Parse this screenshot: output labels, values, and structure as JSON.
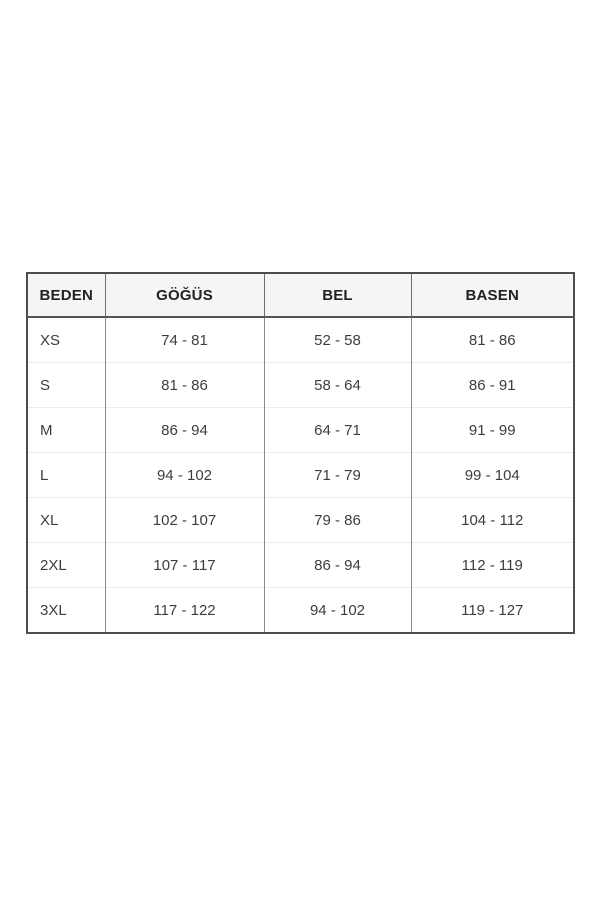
{
  "size_chart": {
    "headers": [
      "BEDEN",
      "GÖĞÜS",
      "BEL",
      "BASEN"
    ],
    "rows": [
      [
        "XS",
        "74 - 81",
        "52 - 58",
        "81 - 86"
      ],
      [
        "S",
        "81 - 86",
        "58 - 64",
        "86 - 91"
      ],
      [
        "M",
        "86 - 94",
        "64 - 71",
        "91 - 99"
      ],
      [
        "L",
        "94 - 102",
        "71 - 79",
        "99 - 104"
      ],
      [
        "XL",
        "102 - 107",
        "79 - 86",
        "104 - 112"
      ],
      [
        "2XL",
        "107 - 117",
        "86 - 94",
        "112 - 119"
      ],
      [
        "3XL",
        "117 - 122",
        "94 - 102",
        "119 - 127"
      ]
    ],
    "colors": {
      "page_background": "#ffffff",
      "header_background": "#f5f5f5",
      "outer_border": "#4d4d4d",
      "column_divider": "#8a8a8a",
      "row_divider": "#ececec",
      "header_text": "#222222",
      "cell_text": "#3d3d3d"
    }
  }
}
